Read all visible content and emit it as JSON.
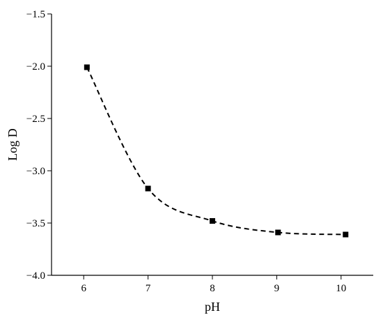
{
  "chart_data": {
    "type": "line",
    "xlabel": "pH",
    "ylabel": "Log D",
    "xlim": [
      5.5,
      10.5
    ],
    "ylim": [
      -4.0,
      -1.5
    ],
    "x_ticks": [
      6,
      7,
      8,
      9,
      10
    ],
    "x_tick_labels": [
      "6",
      "7",
      "8",
      "9",
      "10"
    ],
    "y_ticks": [
      -4.0,
      -3.5,
      -3.0,
      -2.5,
      -2.0,
      -1.5
    ],
    "y_tick_labels": [
      "−4.0",
      "−3.5",
      "−3.0",
      "−2.5",
      "−2.0",
      "−1.5"
    ],
    "grid": false,
    "series": [
      {
        "x": [
          6.05,
          7.0,
          8.0,
          9.02,
          10.07
        ],
        "y": [
          -2.01,
          -3.17,
          -3.48,
          -3.59,
          -3.61
        ],
        "marker": "square",
        "line_style": "dashed",
        "color": "#000000"
      }
    ]
  }
}
